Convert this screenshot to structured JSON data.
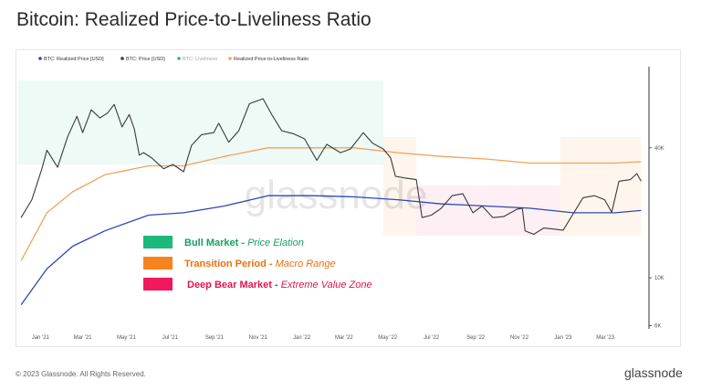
{
  "title": "Bitcoin: Realized Price-to-Liveliness Ratio",
  "footer": {
    "copyright": "© 2023 Glassnode. All Rights Reserved.",
    "brand": "glassnode"
  },
  "watermark": "glassnode",
  "colors": {
    "realized": "#2c49b5",
    "price": "#3a3a3a",
    "liveliness": "#3cb371",
    "ratio": "#f2a25c",
    "bull": "#1db97a",
    "transition": "#f5841f",
    "bear": "#f0195d"
  },
  "legend_bottom_left": [
    {
      "key": "bull",
      "label": "Bull Market",
      "sub": "Price Elation",
      "color": "#1db97a",
      "label_color": "#1a9e62"
    },
    {
      "key": "transition",
      "label": "Transition Period",
      "sub": "Macro Range",
      "color": "#f5841f",
      "label_color": "#e8720f"
    },
    {
      "key": "bear",
      "label": "Deep Bear Market",
      "sub": "Extreme Value Zone",
      "color": "#f0195d",
      "label_color": "#e0164f"
    }
  ],
  "chart_data": {
    "type": "line",
    "legend": [
      {
        "name": "BTC: Realized Price [USD]",
        "color": "#2c49b5"
      },
      {
        "name": "BTC: Price [USD]",
        "color": "#3a3a3a"
      },
      {
        "name": "BTC: Liveliness",
        "color": "#3cb371"
      },
      {
        "name": "Realized Price-to-Liveliness Ratio",
        "color": "#f2a25c"
      }
    ],
    "x_ticks": [
      "Jan '21",
      "Mar '21",
      "May '21",
      "Jul '21",
      "Sep '21",
      "Nov '21",
      "Jan '22",
      "Mar '22",
      "May '22",
      "Jul '22",
      "Sep '22",
      "Nov '22",
      "Jan '23",
      "Mar '23"
    ],
    "x_range": [
      "2020-12-01",
      "2023-05-01"
    ],
    "y_scale": "log",
    "y_ticks": [
      6000,
      10000,
      40000
    ],
    "y_tick_labels": [
      "6K",
      "10K",
      "40K"
    ],
    "y_range": [
      5800,
      95000
    ],
    "zones": [
      {
        "type": "bull",
        "start": "2020-12-01",
        "end": "2022-04-25"
      },
      {
        "type": "transition",
        "start": "2022-04-25",
        "end": "2022-06-10"
      },
      {
        "type": "bear",
        "start": "2022-06-10",
        "end": "2022-12-28"
      },
      {
        "type": "transition",
        "start": "2022-12-28",
        "end": "2023-04-20"
      }
    ],
    "series": [
      {
        "name": "BTC: Price [USD]",
        "x": [
          "2020-12-05",
          "2020-12-20",
          "2021-01-03",
          "2021-01-10",
          "2021-01-25",
          "2021-02-08",
          "2021-02-21",
          "2021-03-01",
          "2021-03-13",
          "2021-03-25",
          "2021-04-05",
          "2021-04-14",
          "2021-04-25",
          "2021-05-05",
          "2021-05-12",
          "2021-05-19",
          "2021-05-25",
          "2021-06-05",
          "2021-06-22",
          "2021-07-05",
          "2021-07-20",
          "2021-07-31",
          "2021-08-14",
          "2021-08-31",
          "2021-09-07",
          "2021-09-21",
          "2021-10-05",
          "2021-10-20",
          "2021-11-08",
          "2021-11-20",
          "2021-12-04",
          "2021-12-20",
          "2022-01-05",
          "2022-01-22",
          "2022-02-05",
          "2022-02-24",
          "2022-03-10",
          "2022-03-28",
          "2022-04-10",
          "2022-04-25",
          "2022-05-05",
          "2022-05-12",
          "2022-05-25",
          "2022-06-10",
          "2022-06-18",
          "2022-07-01",
          "2022-07-15",
          "2022-07-30",
          "2022-08-14",
          "2022-08-28",
          "2022-09-10",
          "2022-09-25",
          "2022-10-10",
          "2022-10-29",
          "2022-11-05",
          "2022-11-09",
          "2022-11-21",
          "2022-12-05",
          "2022-12-20",
          "2023-01-01",
          "2023-01-14",
          "2023-01-29",
          "2023-02-14",
          "2023-02-28",
          "2023-03-10",
          "2023-03-20",
          "2023-04-05",
          "2023-04-14",
          "2023-04-20"
        ],
        "values": [
          19000,
          23000,
          32000,
          39000,
          32500,
          45000,
          56000,
          47000,
          60000,
          55000,
          58000,
          63500,
          50000,
          57000,
          49000,
          37000,
          38000,
          36000,
          32000,
          33500,
          31000,
          41000,
          46000,
          47000,
          52000,
          42500,
          48000,
          64000,
          67500,
          57000,
          48000,
          46500,
          44000,
          35000,
          41500,
          38000,
          39500,
          47000,
          42000,
          39500,
          36000,
          29500,
          29000,
          28500,
          19000,
          19500,
          21000,
          24000,
          24500,
          20000,
          21500,
          19000,
          19200,
          20800,
          21000,
          16500,
          15900,
          17000,
          16800,
          16600,
          19500,
          23500,
          24000,
          23000,
          20100,
          28000,
          28500,
          30400,
          28000
        ]
      },
      {
        "name": "BTC: Realized Price [USD]",
        "x": [
          "2020-12-05",
          "2021-01-10",
          "2021-02-15",
          "2021-04-01",
          "2021-06-01",
          "2021-07-20",
          "2021-09-15",
          "2021-11-15",
          "2022-01-15",
          "2022-03-15",
          "2022-05-15",
          "2022-07-15",
          "2022-09-15",
          "2022-11-15",
          "2023-01-15",
          "2023-03-15",
          "2023-04-20"
        ],
        "values": [
          7500,
          11000,
          14000,
          16500,
          19500,
          20000,
          21500,
          24000,
          24000,
          23700,
          23000,
          22000,
          21500,
          21000,
          20000,
          20000,
          20500
        ]
      },
      {
        "name": "Realized Price-to-Liveliness Ratio",
        "x": [
          "2020-12-05",
          "2021-01-10",
          "2021-02-15",
          "2021-04-01",
          "2021-06-01",
          "2021-07-20",
          "2021-09-15",
          "2021-11-15",
          "2022-01-15",
          "2022-03-15",
          "2022-05-15",
          "2022-07-15",
          "2022-09-15",
          "2022-11-15",
          "2023-01-15",
          "2023-03-15",
          "2023-04-20"
        ],
        "values": [
          12000,
          20000,
          25000,
          30000,
          33000,
          33000,
          36500,
          40000,
          40000,
          40000,
          38000,
          36500,
          35500,
          34000,
          34000,
          34000,
          34500
        ]
      }
    ]
  }
}
